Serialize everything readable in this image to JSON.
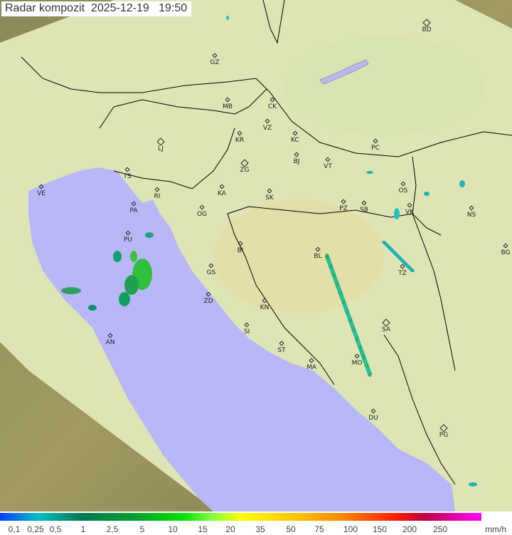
{
  "title": "Radar kompozit  2025-12-19   19:50",
  "cities": [
    "BD",
    "GZ",
    "MB",
    "CK",
    "VZ",
    "KR",
    "KC",
    "PC",
    "LJ",
    "BJ",
    "VT",
    "ZG",
    "TS",
    "VE",
    "KA",
    "SK",
    "OS",
    "RI",
    "PA",
    "OG",
    "PZ",
    "SB",
    "VK",
    "NS",
    "PU",
    "BI",
    "BL",
    "BG",
    "GS",
    "TZ",
    "ZD",
    "KN",
    "SA",
    "SI",
    "AN",
    "ST",
    "MA",
    "MO",
    "DU",
    "PG"
  ],
  "legend": {
    "ticks": [
      "0,1",
      "0,25",
      "0,5",
      "1",
      "2,5",
      "5",
      "10",
      "15",
      "20",
      "35",
      "50",
      "75",
      "100",
      "150",
      "200",
      "250"
    ],
    "unit": "mm/h"
  },
  "colors": {
    "sea": "#b8b8f8",
    "land": "#d8d8a0",
    "coverage": "#e8f0c8",
    "border": "#000000"
  }
}
